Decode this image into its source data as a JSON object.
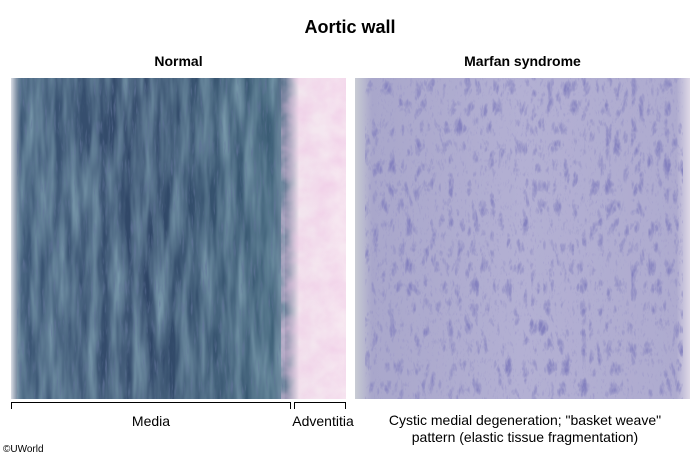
{
  "title": "Aortic wall",
  "panels": {
    "normal": {
      "label": "Normal"
    },
    "marfan": {
      "label": "Marfan syndrome"
    }
  },
  "captions": {
    "media": "Media",
    "adventitia": "Adventitia",
    "marfan_line1": "Cystic medial degeneration; \"basket weave\"",
    "marfan_line2": "pattern (elastic tissue fragmentation)"
  },
  "copyright": "©UWorld",
  "colors": {
    "media_dark": "#2f3f66",
    "media_teal": "#4f8493",
    "adventitia_pink": "#e9b6d6",
    "marfan_base": "#b9b6d6",
    "marfan_fiber": "#3b3a86"
  }
}
